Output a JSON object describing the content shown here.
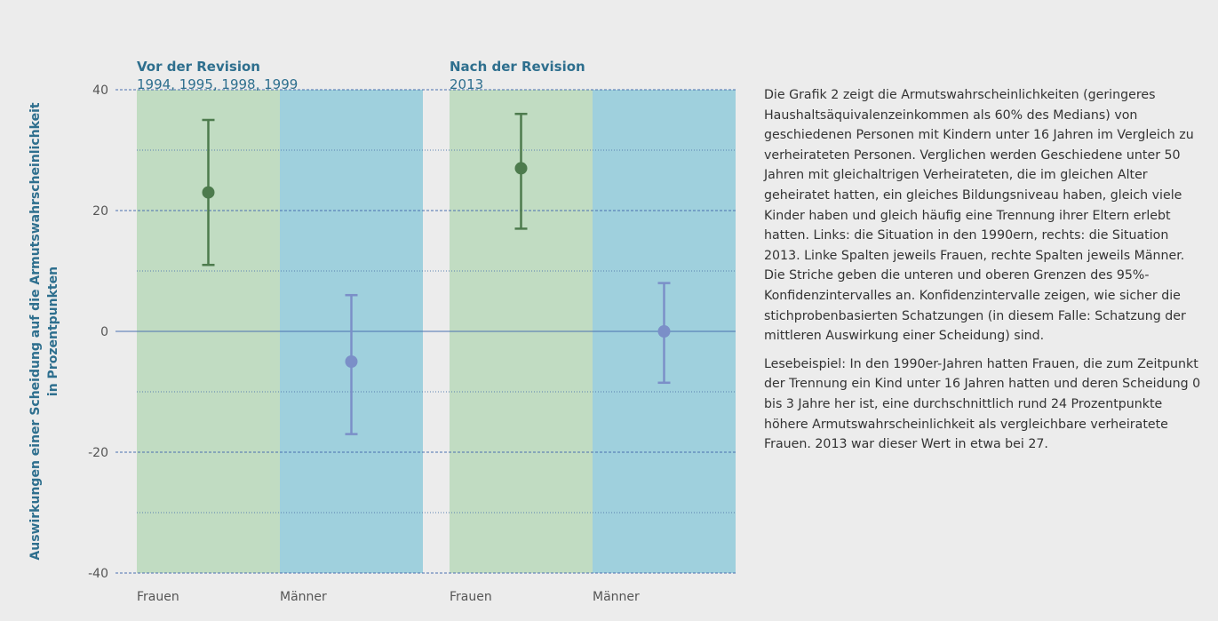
{
  "chart_data": {
    "type": "errorbar",
    "y_label": [
      "Auswirkungen einer Scheidung auf die Armutswahrscheinlichkeit",
      "in Prozentpunkten"
    ],
    "ylim": [
      -40,
      40
    ],
    "yticks": [
      40,
      20,
      0,
      -20,
      -40
    ],
    "minor_yticks": [
      30,
      10,
      -10,
      -30
    ],
    "band_colors": [
      "#c1dcc2",
      "#9fd0dd"
    ],
    "point_colors": [
      "#4d7b4d",
      "#7b8fc8"
    ],
    "panels": [
      {
        "title": "Vor der Revision",
        "subtitle": "1994, 1995, 1998, 1999",
        "categories": [
          "Frauen",
          "Männer"
        ],
        "values": [
          23,
          -5
        ],
        "lower": [
          11,
          -17
        ],
        "upper": [
          35,
          6
        ]
      },
      {
        "title": "Nach der Revision",
        "subtitle": "2013",
        "categories": [
          "Frauen",
          "Männer"
        ],
        "values": [
          27,
          0
        ],
        "lower": [
          17,
          -8.5
        ],
        "upper": [
          36,
          8
        ]
      }
    ]
  },
  "text": {
    "paragraphs": [
      "Die Grafik 2 zeigt die Armutswahrscheinlichkeiten (geringeres Haushaltsäquivalenzeinkommen als 60% des Medians) von geschiedenen Personen mit Kindern unter 16 Jahren im Vergleich zu verheirateten Personen. Verglichen werden Geschiedene unter 50 Jahren mit gleichaltrigen Verheirateten, die im gleichen Alter geheiratet hatten, ein gleiches Bildungsniveau haben, gleich viele Kinder haben und gleich häufig eine Trennung ihrer Eltern erlebt hatten. Links: die Situation in den 1990ern, rechts: die Situation 2013. Linke Spalten jeweils Frauen, rechte Spalten jeweils Männer. Die Striche geben die unteren und oberen Grenzen des 95%-Konfidenzintervalles an. Konfidenzintervalle zeigen, wie sicher die stichprobenbasierten Schatzungen (in diesem Falle: Schatzung der mittleren Auswirkung einer Scheidung) sind.",
      "Lesebeispiel: In den 1990er-Jahren hatten Frauen, die zum Zeitpunkt der Trennung ein Kind unter 16 Jahren hatten und deren Scheidung 0 bis 3 Jahre her ist, eine durchschnittlich rund 24 Prozentpunkte höhere Armutswahrscheinlichkeit als vergleichbare verheiratete Frauen. 2013 war dieser Wert in etwa bei 27."
    ]
  }
}
